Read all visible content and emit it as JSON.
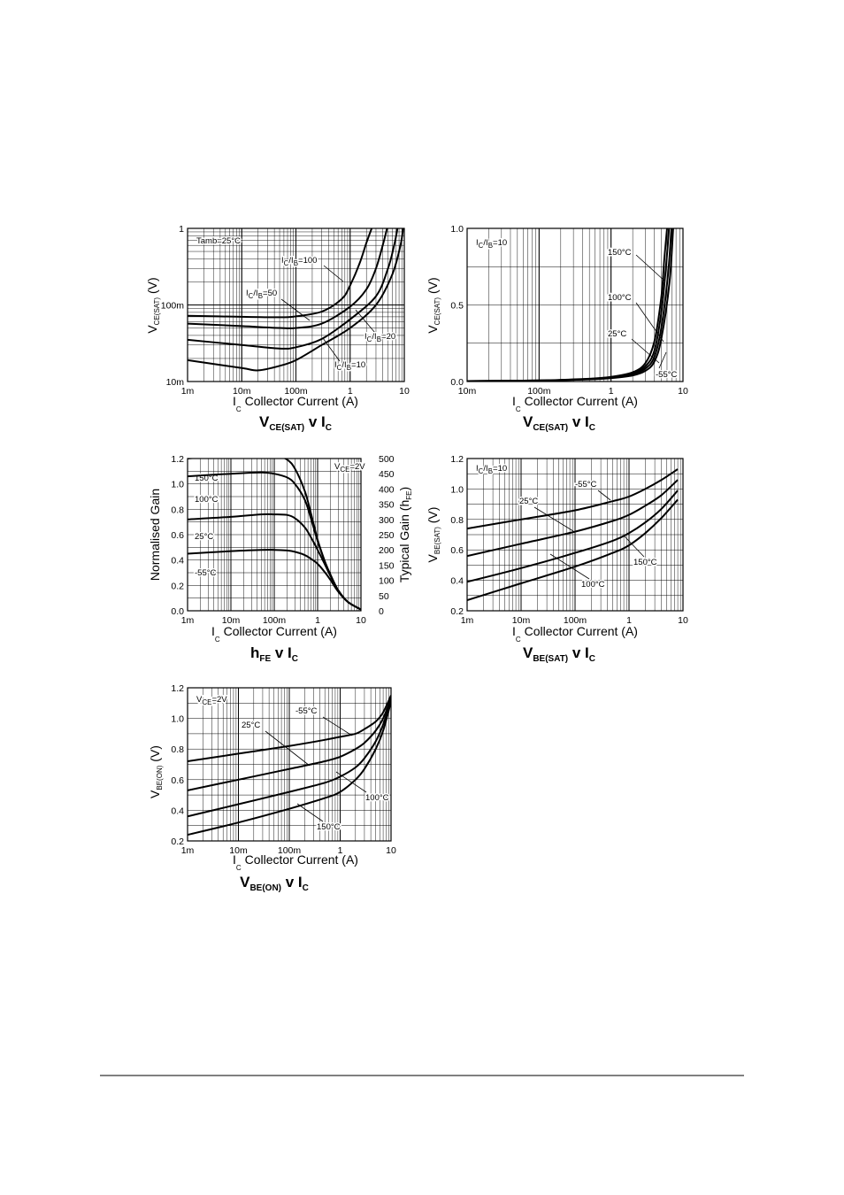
{
  "chart_data": [
    {
      "id": "vcesat_log",
      "type": "line",
      "title": {
        "main": "V",
        "sub": "CE(SAT)",
        "mid": " v I",
        "sub2": "C"
      },
      "xlabel": {
        "pre": "I",
        "sub": "C",
        "text": "  Collector Current (A)"
      },
      "ylabel": {
        "pre": "V",
        "sub": "CE(SAT)",
        "text": " (V)"
      },
      "xscale": "log",
      "yscale": "log",
      "xlim": [
        0.001,
        10
      ],
      "ylim": [
        0.01,
        1
      ],
      "xticks": [
        {
          "v": 0.001,
          "t": "1m"
        },
        {
          "v": 0.01,
          "t": "10m"
        },
        {
          "v": 0.1,
          "t": "100m"
        },
        {
          "v": 1,
          "t": "1"
        },
        {
          "v": 10,
          "t": "10"
        }
      ],
      "yticks": [
        {
          "v": 0.01,
          "t": "10m"
        },
        {
          "v": 0.1,
          "t": "100m"
        },
        {
          "v": 1,
          "t": "1"
        }
      ],
      "annotations": [
        "Tamb=25°C"
      ],
      "series": [
        {
          "name": "IC/IB=100",
          "label_parts": [
            "I",
            "C",
            "/I",
            "B",
            "=100"
          ],
          "x": [
            0.001,
            0.01,
            0.05,
            0.1,
            0.3,
            0.7,
            1,
            1.5,
            2,
            2.5
          ],
          "y": [
            0.072,
            0.07,
            0.069,
            0.071,
            0.082,
            0.12,
            0.18,
            0.35,
            0.65,
            1
          ]
        },
        {
          "name": "IC/IB=50",
          "label_parts": [
            "I",
            "C",
            "/I",
            "B",
            "=50"
          ],
          "x": [
            0.001,
            0.01,
            0.05,
            0.1,
            0.3,
            1,
            2,
            3,
            4,
            4.8
          ],
          "y": [
            0.057,
            0.053,
            0.05,
            0.05,
            0.057,
            0.095,
            0.16,
            0.3,
            0.6,
            1
          ]
        },
        {
          "name": "IC/IB=20",
          "label_parts": [
            "I",
            "C",
            "/I",
            "B",
            "=20"
          ],
          "x": [
            0.001,
            0.01,
            0.05,
            0.1,
            0.3,
            1,
            3,
            5,
            6.5,
            7.5
          ],
          "y": [
            0.035,
            0.03,
            0.027,
            0.028,
            0.036,
            0.065,
            0.13,
            0.3,
            0.6,
            1
          ]
        },
        {
          "name": "IC/IB=10",
          "label_parts": [
            "I",
            "C",
            "/I",
            "B",
            "=10"
          ],
          "x": [
            0.001,
            0.01,
            0.02,
            0.05,
            0.1,
            0.3,
            1,
            3,
            6,
            8.5,
            9.5
          ],
          "y": [
            0.019,
            0.015,
            0.014,
            0.016,
            0.019,
            0.03,
            0.05,
            0.1,
            0.25,
            0.6,
            1
          ]
        }
      ]
    },
    {
      "id": "vcesat_lin",
      "type": "line",
      "title": {
        "main": "V",
        "sub": "CE(SAT)",
        "mid": " v I",
        "sub2": "C"
      },
      "xlabel": {
        "pre": "I",
        "sub": "C",
        "text": "  Collector Current (A)"
      },
      "ylabel": {
        "pre": "V",
        "sub": "CE(SAT)",
        "text": " (V)"
      },
      "xscale": "log",
      "yscale": "linear",
      "xlim": [
        0.01,
        10
      ],
      "ylim": [
        0,
        1
      ],
      "xticks": [
        {
          "v": 0.01,
          "t": "10m"
        },
        {
          "v": 0.1,
          "t": "100m"
        },
        {
          "v": 1,
          "t": "1"
        },
        {
          "v": 10,
          "t": "10"
        }
      ],
      "yticks": [
        {
          "v": 0,
          "t": "0.0"
        },
        {
          "v": 0.5,
          "t": "0.5"
        },
        {
          "v": 1,
          "t": "1.0"
        }
      ],
      "annotations": [
        "IC/IB=10"
      ],
      "series": [
        {
          "name": "150°C",
          "x": [
            0.01,
            0.1,
            0.5,
            1,
            2,
            3,
            4,
            5,
            5.5,
            6
          ],
          "y": [
            0.003,
            0.007,
            0.018,
            0.03,
            0.06,
            0.12,
            0.26,
            0.55,
            0.8,
            1
          ]
        },
        {
          "name": "100°C",
          "x": [
            0.01,
            0.1,
            0.5,
            1,
            2,
            3,
            4,
            5,
            5.8,
            6.4
          ],
          "y": [
            0.003,
            0.007,
            0.017,
            0.028,
            0.055,
            0.1,
            0.2,
            0.45,
            0.75,
            1
          ]
        },
        {
          "name": "25°C",
          "x": [
            0.01,
            0.1,
            0.5,
            1,
            2,
            3,
            4,
            5,
            6.2,
            6.9
          ],
          "y": [
            0.003,
            0.006,
            0.015,
            0.025,
            0.048,
            0.085,
            0.16,
            0.35,
            0.7,
            1
          ]
        },
        {
          "name": "-55°C",
          "x": [
            0.01,
            0.1,
            0.5,
            1,
            2,
            3,
            4,
            5,
            6.5,
            7.3
          ],
          "y": [
            0.003,
            0.006,
            0.014,
            0.022,
            0.04,
            0.07,
            0.13,
            0.28,
            0.65,
            1
          ]
        }
      ]
    },
    {
      "id": "hfe",
      "type": "line",
      "title": {
        "main": "h",
        "sub": "FE",
        "mid": " v I",
        "sub2": "C"
      },
      "xlabel": {
        "pre": "I",
        "sub": "C",
        "text": "  Collector Current (A)"
      },
      "ylabel": {
        "pre": "",
        "sub": "",
        "text": "Normalised Gain"
      },
      "y2label": {
        "pre": "Typical Gain (h",
        "sub": "FE",
        "text": ")"
      },
      "xscale": "log",
      "yscale": "linear",
      "xlim": [
        0.001,
        10
      ],
      "ylim": [
        0,
        1.2
      ],
      "y2lim": [
        0,
        500
      ],
      "xticks": [
        {
          "v": 0.001,
          "t": "1m"
        },
        {
          "v": 0.01,
          "t": "10m"
        },
        {
          "v": 0.1,
          "t": "100m"
        },
        {
          "v": 1,
          "t": "1"
        },
        {
          "v": 10,
          "t": "10"
        }
      ],
      "yticks": [
        {
          "v": 0,
          "t": "0.0"
        },
        {
          "v": 0.2,
          "t": "0.2"
        },
        {
          "v": 0.4,
          "t": "0.4"
        },
        {
          "v": 0.6,
          "t": "0.6"
        },
        {
          "v": 0.8,
          "t": "0.8"
        },
        {
          "v": 1.0,
          "t": "1.0"
        },
        {
          "v": 1.2,
          "t": "1.2"
        }
      ],
      "y2ticks": [
        {
          "v": 0,
          "t": "0"
        },
        {
          "v": 50,
          "t": "50"
        },
        {
          "v": 100,
          "t": "100"
        },
        {
          "v": 150,
          "t": "150"
        },
        {
          "v": 200,
          "t": "200"
        },
        {
          "v": 250,
          "t": "250"
        },
        {
          "v": 300,
          "t": "300"
        },
        {
          "v": 350,
          "t": "350"
        },
        {
          "v": 400,
          "t": "400"
        },
        {
          "v": 450,
          "t": "450"
        },
        {
          "v": 500,
          "t": "500"
        }
      ],
      "annotations": [
        "VCE=2V"
      ],
      "series": [
        {
          "name": "150°C",
          "x": [
            0.001,
            0.01,
            0.03,
            0.1,
            0.2,
            0.3,
            0.5,
            0.7,
            1,
            1.5,
            2,
            3,
            5,
            10
          ],
          "y": [
            1.2,
            1.23,
            1.235,
            1.23,
            1.19,
            1.12,
            0.95,
            0.77,
            0.56,
            0.38,
            0.28,
            0.16,
            0.07,
            0.01
          ]
        },
        {
          "name": "100°C",
          "x": [
            0.001,
            0.01,
            0.05,
            0.1,
            0.2,
            0.3,
            0.5,
            0.7,
            1,
            1.5,
            2,
            3,
            5,
            10
          ],
          "y": [
            1.06,
            1.08,
            1.09,
            1.08,
            1.05,
            1.0,
            0.88,
            0.73,
            0.55,
            0.38,
            0.28,
            0.16,
            0.07,
            0.01
          ]
        },
        {
          "name": "25°C",
          "x": [
            0.001,
            0.01,
            0.05,
            0.1,
            0.2,
            0.3,
            0.5,
            0.7,
            1,
            1.5,
            2,
            3,
            5,
            10
          ],
          "y": [
            0.72,
            0.74,
            0.76,
            0.76,
            0.755,
            0.73,
            0.66,
            0.58,
            0.48,
            0.36,
            0.27,
            0.16,
            0.07,
            0.01
          ]
        },
        {
          "name": "-55°C",
          "x": [
            0.001,
            0.01,
            0.05,
            0.1,
            0.2,
            0.3,
            0.5,
            0.7,
            1,
            1.5,
            2,
            3,
            5,
            10
          ],
          "y": [
            0.45,
            0.47,
            0.48,
            0.48,
            0.475,
            0.465,
            0.44,
            0.41,
            0.37,
            0.3,
            0.24,
            0.15,
            0.07,
            0.01
          ]
        }
      ]
    },
    {
      "id": "vbesat",
      "type": "line",
      "title": {
        "main": "V",
        "sub": "BE(SAT)",
        "mid": " v I",
        "sub2": "C"
      },
      "xlabel": {
        "pre": "I",
        "sub": "C",
        "text": "  Collector Current (A)"
      },
      "ylabel": {
        "pre": "V",
        "sub": "BE(SAT)",
        "text": " (V)"
      },
      "xscale": "log",
      "yscale": "linear",
      "xlim": [
        0.001,
        10
      ],
      "ylim": [
        0.2,
        1.2
      ],
      "xticks": [
        {
          "v": 0.001,
          "t": "1m"
        },
        {
          "v": 0.01,
          "t": "10m"
        },
        {
          "v": 0.1,
          "t": "100m"
        },
        {
          "v": 1,
          "t": "1"
        },
        {
          "v": 10,
          "t": "10"
        }
      ],
      "yticks": [
        {
          "v": 0.2,
          "t": "0.2"
        },
        {
          "v": 0.4,
          "t": "0.4"
        },
        {
          "v": 0.6,
          "t": "0.6"
        },
        {
          "v": 0.8,
          "t": "0.8"
        },
        {
          "v": 1.0,
          "t": "1.0"
        },
        {
          "v": 1.2,
          "t": "1.2"
        }
      ],
      "annotations": [
        "IC/IB=10"
      ],
      "series": [
        {
          "name": "-55°C",
          "x": [
            0.001,
            0.01,
            0.1,
            0.5,
            1,
            2,
            4,
            8
          ],
          "y": [
            0.74,
            0.8,
            0.86,
            0.92,
            0.95,
            1.0,
            1.06,
            1.13
          ]
        },
        {
          "name": "25°C",
          "x": [
            0.001,
            0.01,
            0.1,
            0.5,
            1,
            2,
            4,
            8
          ],
          "y": [
            0.56,
            0.64,
            0.72,
            0.79,
            0.83,
            0.89,
            0.96,
            1.06
          ]
        },
        {
          "name": "100°C",
          "x": [
            0.001,
            0.01,
            0.1,
            0.5,
            1,
            2,
            4,
            8
          ],
          "y": [
            0.39,
            0.48,
            0.58,
            0.66,
            0.71,
            0.78,
            0.87,
            0.99
          ]
        },
        {
          "name": "150°C",
          "x": [
            0.001,
            0.01,
            0.1,
            0.5,
            1,
            2,
            4,
            8
          ],
          "y": [
            0.27,
            0.38,
            0.49,
            0.58,
            0.63,
            0.71,
            0.81,
            0.93
          ]
        }
      ]
    },
    {
      "id": "vbeon",
      "type": "line",
      "title": {
        "main": "V",
        "sub": "BE(ON)",
        "mid": " v I",
        "sub2": "C"
      },
      "xlabel": {
        "pre": "I",
        "sub": "C",
        "text": "  Collector Current (A)"
      },
      "ylabel": {
        "pre": "V",
        "sub": "BE(ON)",
        "text": " (V)"
      },
      "xscale": "log",
      "yscale": "linear",
      "xlim": [
        0.001,
        10
      ],
      "ylim": [
        0.2,
        1.2
      ],
      "xticks": [
        {
          "v": 0.001,
          "t": "1m"
        },
        {
          "v": 0.01,
          "t": "10m"
        },
        {
          "v": 0.1,
          "t": "100m"
        },
        {
          "v": 1,
          "t": "1"
        },
        {
          "v": 10,
          "t": "10"
        }
      ],
      "yticks": [
        {
          "v": 0.2,
          "t": "0.2"
        },
        {
          "v": 0.4,
          "t": "0.4"
        },
        {
          "v": 0.6,
          "t": "0.6"
        },
        {
          "v": 0.8,
          "t": "0.8"
        },
        {
          "v": 1.0,
          "t": "1.0"
        },
        {
          "v": 1.2,
          "t": "1.2"
        }
      ],
      "annotations": [
        "VCE=2V"
      ],
      "series": [
        {
          "name": "-55°C",
          "x": [
            0.001,
            0.01,
            0.1,
            0.5,
            1,
            2,
            3,
            5,
            7,
            10
          ],
          "y": [
            0.72,
            0.77,
            0.82,
            0.86,
            0.88,
            0.9,
            0.93,
            0.98,
            1.04,
            1.15
          ]
        },
        {
          "name": "25°C",
          "x": [
            0.001,
            0.01,
            0.1,
            0.5,
            1,
            2,
            3,
            5,
            7,
            10
          ],
          "y": [
            0.53,
            0.6,
            0.67,
            0.72,
            0.75,
            0.8,
            0.84,
            0.92,
            1.0,
            1.13
          ]
        },
        {
          "name": "100°C",
          "x": [
            0.001,
            0.01,
            0.1,
            0.5,
            1,
            2,
            3,
            5,
            7,
            10
          ],
          "y": [
            0.36,
            0.44,
            0.52,
            0.58,
            0.62,
            0.68,
            0.74,
            0.85,
            0.96,
            1.12
          ]
        },
        {
          "name": "150°C",
          "x": [
            0.001,
            0.01,
            0.1,
            0.5,
            1,
            2,
            3,
            5,
            7,
            10
          ],
          "y": [
            0.24,
            0.32,
            0.41,
            0.48,
            0.52,
            0.6,
            0.67,
            0.8,
            0.92,
            1.11
          ]
        }
      ]
    }
  ]
}
